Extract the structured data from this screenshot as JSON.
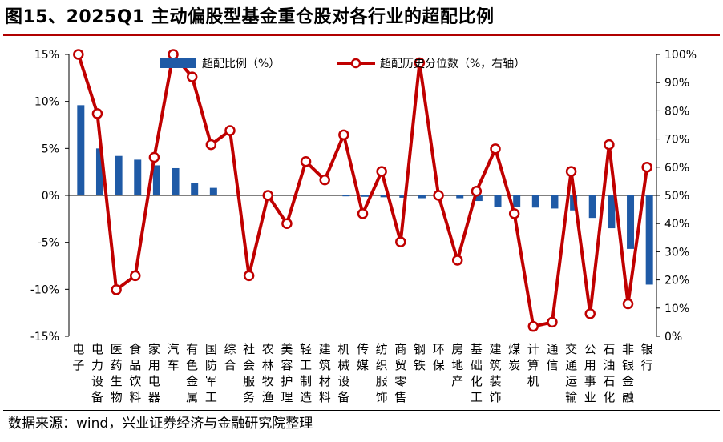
{
  "title": "图15、2025Q1 主动偏股型基金重仓股对各行业的超配比例",
  "source": "数据来源：wind，兴业证券经济与金融研究院整理",
  "colors": {
    "bar": "#1f5aa6",
    "line": "#c00000",
    "title_rule": "#b00000",
    "axis": "#000000"
  },
  "chart_data": {
    "type": "bar+line",
    "categories": [
      "电子",
      "电力设备",
      "医药生物",
      "食品饮料",
      "家用电器",
      "汽车",
      "有色金属",
      "国防军工",
      "综合",
      "社会服务",
      "农林牧渔",
      "美容护理",
      "轻工制造",
      "建筑材料",
      "机械设备",
      "传媒",
      "纺织服饰",
      "商贸零售",
      "钢铁",
      "环保",
      "房地产",
      "基础化工",
      "建筑装饰",
      "煤炭",
      "计算机",
      "通信",
      "交通运输",
      "公用事业",
      "石油石化",
      "非银金融",
      "银行"
    ],
    "series": [
      {
        "name": "超配比例（%）",
        "axis": "left",
        "type": "bar",
        "values": [
          9.6,
          5.0,
          4.2,
          3.8,
          3.2,
          2.9,
          1.3,
          0.8,
          0.0,
          0.0,
          0.0,
          0.0,
          0.0,
          0.0,
          -0.1,
          -0.15,
          -0.2,
          -0.25,
          -0.3,
          0.0,
          -0.3,
          -0.6,
          -1.2,
          -1.2,
          -1.3,
          -1.4,
          -1.6,
          -2.4,
          -3.5,
          -5.7,
          -9.5
        ]
      },
      {
        "name": "超配历史分位数（%，右轴）",
        "axis": "right",
        "type": "line",
        "values": [
          100,
          79,
          16.5,
          21.5,
          63.5,
          100,
          92,
          68,
          73,
          21.5,
          50,
          40,
          62,
          55.5,
          71.5,
          43.5,
          58.5,
          33.5,
          97,
          50,
          27,
          51.5,
          66.5,
          43.5,
          3.5,
          5,
          58.5,
          8,
          68,
          11.5,
          60
        ]
      }
    ],
    "y_left": {
      "min": -15,
      "max": 15,
      "ticks": [
        "-15%",
        "-10%",
        "-5%",
        "0%",
        "5%",
        "10%",
        "15%"
      ],
      "tick_values": [
        -15,
        -10,
        -5,
        0,
        5,
        10,
        15
      ]
    },
    "y_right": {
      "min": 0,
      "max": 100,
      "ticks": [
        "0%",
        "10%",
        "20%",
        "30%",
        "40%",
        "50%",
        "60%",
        "70%",
        "80%",
        "90%",
        "100%"
      ],
      "tick_values": [
        0,
        10,
        20,
        30,
        40,
        50,
        60,
        70,
        80,
        90,
        100
      ]
    },
    "legend_position": "top-center"
  }
}
